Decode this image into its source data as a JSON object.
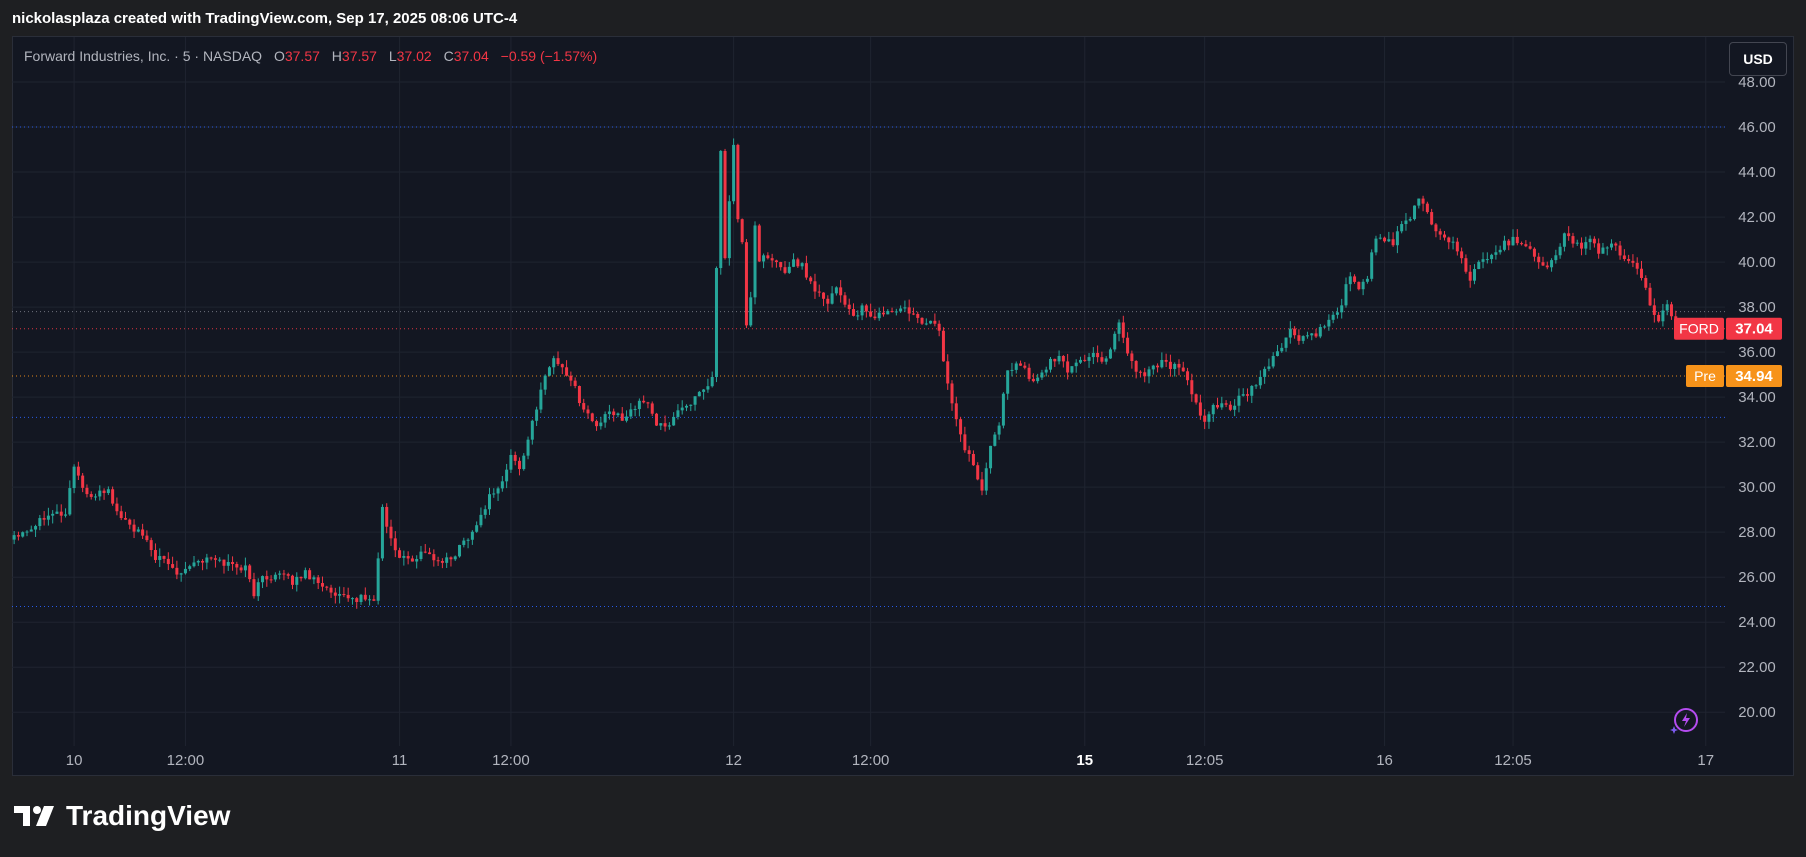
{
  "header": {
    "attribution": "nickolasplaza created with TradingView.com, Sep 17, 2025 08:06 UTC-4"
  },
  "legend": {
    "symbol": "Forward Industries, Inc. · 5 · NASDAQ",
    "o_label": "O",
    "o_value": "37.57",
    "h_label": "H",
    "h_value": "37.57",
    "l_label": "L",
    "l_value": "37.02",
    "c_label": "C",
    "c_value": "37.04",
    "change": "−0.59 (−1.57%)"
  },
  "currency_button": {
    "label": "USD"
  },
  "brand": {
    "name": "TradingView"
  },
  "colors": {
    "up": "#26a69a",
    "down": "#f23645",
    "pre": "#f7931a",
    "background": "#131722",
    "grid": "#1f2430",
    "axis_text": "#b2b5be"
  },
  "chart_data": {
    "type": "candlestick",
    "ylim": [
      18.5,
      50
    ],
    "y_ticks": [
      "20.00",
      "22.00",
      "24.00",
      "26.00",
      "28.00",
      "30.00",
      "32.00",
      "34.00",
      "36.00",
      "38.00",
      "40.00",
      "42.00",
      "44.00",
      "46.00",
      "48.00"
    ],
    "x_tick_labels": [
      {
        "label": "10",
        "i": 14,
        "bold": false
      },
      {
        "label": "12:00",
        "i": 40,
        "bold": false
      },
      {
        "label": "11",
        "i": 90,
        "bold": false
      },
      {
        "label": "12:00",
        "i": 116,
        "bold": false
      },
      {
        "label": "12",
        "i": 168,
        "bold": false
      },
      {
        "label": "12:00",
        "i": 200,
        "bold": false
      },
      {
        "label": "15",
        "i": 250,
        "bold": true
      },
      {
        "label": "12:05",
        "i": 278,
        "bold": false
      },
      {
        "label": "16",
        "i": 320,
        "bold": false
      },
      {
        "label": "12:05",
        "i": 350,
        "bold": false
      },
      {
        "label": "17",
        "i": 395,
        "bold": false
      }
    ],
    "price_labels": [
      {
        "name": "FORD",
        "value": 37.04,
        "color": "#f23645"
      },
      {
        "name": "Pre",
        "value": 34.94,
        "color": "#f7931a"
      }
    ],
    "horizontal_lines": [
      {
        "value": 46.0,
        "color": "#2962ff",
        "style": "dotted"
      },
      {
        "value": 37.8,
        "color": "#787b86",
        "style": "dotted"
      },
      {
        "value": 37.04,
        "color": "#f23645",
        "style": "dotted"
      },
      {
        "value": 34.94,
        "color": "#f7931a",
        "style": "dotted"
      },
      {
        "value": 33.1,
        "color": "#2962ff",
        "style": "dotted"
      },
      {
        "value": 24.7,
        "color": "#2962ff",
        "style": "dotted"
      }
    ],
    "anchors": [
      [
        0,
        27.9
      ],
      [
        4,
        28.2
      ],
      [
        8,
        28.9
      ],
      [
        12,
        28.8
      ],
      [
        14,
        31.0
      ],
      [
        16,
        30.0
      ],
      [
        18,
        29.4
      ],
      [
        20,
        29.9
      ],
      [
        22,
        29.8
      ],
      [
        24,
        28.9
      ],
      [
        27,
        28.3
      ],
      [
        30,
        27.8
      ],
      [
        33,
        26.9
      ],
      [
        36,
        26.6
      ],
      [
        38,
        26.2
      ],
      [
        42,
        26.7
      ],
      [
        46,
        26.8
      ],
      [
        50,
        26.6
      ],
      [
        54,
        26.4
      ],
      [
        56,
        25.3
      ],
      [
        58,
        26.0
      ],
      [
        62,
        26.1
      ],
      [
        65,
        25.8
      ],
      [
        68,
        26.2
      ],
      [
        72,
        25.7
      ],
      [
        74,
        25.2
      ],
      [
        78,
        25.0
      ],
      [
        82,
        25.1
      ],
      [
        84,
        24.9
      ],
      [
        86,
        29.0
      ],
      [
        88,
        27.6
      ],
      [
        90,
        26.9
      ],
      [
        93,
        26.8
      ],
      [
        96,
        27.2
      ],
      [
        99,
        26.6
      ],
      [
        102,
        26.8
      ],
      [
        105,
        27.6
      ],
      [
        108,
        28.3
      ],
      [
        111,
        29.6
      ],
      [
        114,
        30.2
      ],
      [
        116,
        31.4
      ],
      [
        118,
        30.8
      ],
      [
        120,
        32.2
      ],
      [
        122,
        33.4
      ],
      [
        124,
        35.1
      ],
      [
        126,
        35.7
      ],
      [
        128,
        35.3
      ],
      [
        130,
        34.8
      ],
      [
        132,
        33.9
      ],
      [
        134,
        33.2
      ],
      [
        136,
        32.7
      ],
      [
        139,
        33.3
      ],
      [
        142,
        33.1
      ],
      [
        145,
        33.6
      ],
      [
        148,
        33.8
      ],
      [
        150,
        32.8
      ],
      [
        152,
        32.6
      ],
      [
        155,
        33.4
      ],
      [
        158,
        33.8
      ],
      [
        161,
        34.2
      ],
      [
        163,
        34.8
      ],
      [
        165,
        44.8
      ],
      [
        166,
        40.3
      ],
      [
        167,
        42.6
      ],
      [
        168,
        45.2
      ],
      [
        169,
        41.9
      ],
      [
        170,
        40.8
      ],
      [
        171,
        37.1
      ],
      [
        172,
        38.5
      ],
      [
        173,
        41.6
      ],
      [
        174,
        40.2
      ],
      [
        176,
        40.1
      ],
      [
        178,
        39.9
      ],
      [
        180,
        39.6
      ],
      [
        182,
        40.1
      ],
      [
        184,
        39.8
      ],
      [
        186,
        39.1
      ],
      [
        188,
        38.6
      ],
      [
        190,
        38.3
      ],
      [
        192,
        38.9
      ],
      [
        194,
        38.2
      ],
      [
        196,
        37.6
      ],
      [
        198,
        37.9
      ],
      [
        200,
        37.5
      ],
      [
        202,
        37.7
      ],
      [
        205,
        37.8
      ],
      [
        208,
        37.9
      ],
      [
        210,
        37.6
      ],
      [
        212,
        37.2
      ],
      [
        214,
        37.5
      ],
      [
        216,
        36.9
      ],
      [
        218,
        34.5
      ],
      [
        220,
        33.1
      ],
      [
        222,
        31.6
      ],
      [
        224,
        31.1
      ],
      [
        226,
        29.9
      ],
      [
        228,
        32.0
      ],
      [
        230,
        32.9
      ],
      [
        232,
        35.1
      ],
      [
        234,
        35.6
      ],
      [
        236,
        35.2
      ],
      [
        238,
        34.6
      ],
      [
        240,
        35.1
      ],
      [
        242,
        35.6
      ],
      [
        244,
        35.7
      ],
      [
        246,
        35.2
      ],
      [
        248,
        35.6
      ],
      [
        250,
        35.7
      ],
      [
        252,
        35.9
      ],
      [
        254,
        35.5
      ],
      [
        256,
        36.2
      ],
      [
        258,
        37.4
      ],
      [
        260,
        36.0
      ],
      [
        262,
        35.2
      ],
      [
        264,
        35.0
      ],
      [
        266,
        35.4
      ],
      [
        268,
        35.6
      ],
      [
        270,
        35.4
      ],
      [
        272,
        35.3
      ],
      [
        274,
        34.7
      ],
      [
        276,
        33.6
      ],
      [
        278,
        32.8
      ],
      [
        280,
        33.6
      ],
      [
        282,
        33.8
      ],
      [
        284,
        33.4
      ],
      [
        286,
        33.9
      ],
      [
        288,
        34.1
      ],
      [
        290,
        34.6
      ],
      [
        292,
        35.1
      ],
      [
        294,
        35.8
      ],
      [
        296,
        36.3
      ],
      [
        298,
        36.9
      ],
      [
        300,
        36.6
      ],
      [
        302,
        36.7
      ],
      [
        304,
        36.8
      ],
      [
        306,
        37.1
      ],
      [
        308,
        37.5
      ],
      [
        310,
        38.2
      ],
      [
        312,
        39.5
      ],
      [
        314,
        38.8
      ],
      [
        316,
        39.4
      ],
      [
        318,
        41.2
      ],
      [
        320,
        40.9
      ],
      [
        322,
        40.8
      ],
      [
        324,
        41.6
      ],
      [
        326,
        41.9
      ],
      [
        328,
        42.9
      ],
      [
        330,
        42.2
      ],
      [
        332,
        41.3
      ],
      [
        334,
        41.2
      ],
      [
        336,
        40.8
      ],
      [
        338,
        40.2
      ],
      [
        340,
        39.2
      ],
      [
        342,
        39.9
      ],
      [
        344,
        40.3
      ],
      [
        346,
        40.5
      ],
      [
        348,
        40.8
      ],
      [
        350,
        41.0
      ],
      [
        352,
        40.9
      ],
      [
        354,
        40.6
      ],
      [
        356,
        40.1
      ],
      [
        358,
        39.8
      ],
      [
        360,
        40.2
      ],
      [
        362,
        41.3
      ],
      [
        364,
        40.9
      ],
      [
        366,
        40.7
      ],
      [
        368,
        40.9
      ],
      [
        370,
        40.5
      ],
      [
        372,
        40.8
      ],
      [
        374,
        40.6
      ],
      [
        376,
        40.2
      ],
      [
        378,
        39.9
      ],
      [
        380,
        39.2
      ],
      [
        382,
        38.2
      ],
      [
        384,
        37.4
      ],
      [
        385,
        37.9
      ],
      [
        386,
        38.0
      ],
      [
        387,
        37.6
      ],
      [
        388,
        37.1
      ],
      [
        389,
        37.04
      ]
    ]
  }
}
